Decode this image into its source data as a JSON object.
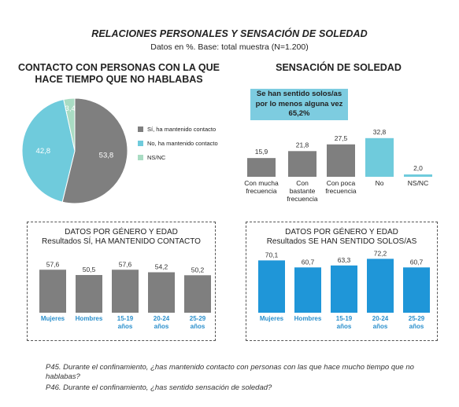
{
  "header": {
    "title": "RELACIONES PERSONALES Y SENSACIÓN DE SOLEDAD",
    "subtitle": "Datos en %. Base: total muestra (N=1.200)"
  },
  "contact": {
    "heading": "CONTACTO CON PERSONAS CON LA QUE HACE TIEMPO QUE NO HABLABAS"
  },
  "loneliness": {
    "heading": "SENSACIÓN DE SOLEDAD",
    "callout": "Se han sentido solos/as por lo menos alguna vez 65,2%"
  },
  "box_left": {
    "line1": "DATOS POR GÉNERO Y EDAD",
    "line2": "Resultados SÍ, HA MANTENIDO CONTACTO"
  },
  "box_right": {
    "line1": "DATOS POR GÉNERO Y EDAD",
    "line2": "Resultados SE HAN SENTIDO SOLOS/AS"
  },
  "footnotes": {
    "p45": "P45. Durante el confinamiento, ¿has mantenido contacto con personas con las que hace mucho tiempo que no hablabas?",
    "p46": "P46. Durante el confinamiento, ¿has sentido sensación de soledad?"
  },
  "colors": {
    "gray": "#7f7f7f",
    "light_blue": "#6fcbdc",
    "light_green": "#a9dcc3",
    "blue": "#1f96d8",
    "label_blue": "#2a8fcc"
  },
  "chart_data": [
    {
      "type": "pie",
      "labels": [
        "Sí, ha mantenido contacto",
        "No, ha mantenido contacto",
        "NS/NC"
      ],
      "values": [
        53.8,
        42.8,
        3.4
      ],
      "value_labels": [
        "53,8",
        "42,8",
        "3,4"
      ],
      "colors": [
        "#7f7f7f",
        "#6fcbdc",
        "#a9dcc3"
      ],
      "legend": "right"
    },
    {
      "type": "bar",
      "categories": [
        "Con mucha frecuencia",
        "Con bastante frecuencia",
        "Con poca frecuencia",
        "No",
        "NS/NC"
      ],
      "values": [
        15.9,
        21.8,
        27.5,
        32.8,
        2.0
      ],
      "value_labels": [
        "15,9",
        "21,8",
        "27,5",
        "32,8",
        "2,0"
      ],
      "colors": [
        "#7f7f7f",
        "#7f7f7f",
        "#7f7f7f",
        "#6fcbdc",
        "#6fcbdc"
      ]
    },
    {
      "type": "bar",
      "categories": [
        "Mujeres",
        "Hombres",
        "15-19 años",
        "20-24 años",
        "25-29 años"
      ],
      "values": [
        57.6,
        50.5,
        57.6,
        54.2,
        50.2
      ],
      "value_labels": [
        "57,6",
        "50,5",
        "57,6",
        "54,2",
        "50,2"
      ],
      "bar_color": "#7f7f7f"
    },
    {
      "type": "bar",
      "categories": [
        "Mujeres",
        "Hombres",
        "15-19 años",
        "20-24 años",
        "25-29 años"
      ],
      "values": [
        70.1,
        60.7,
        63.3,
        72.2,
        60.7
      ],
      "value_labels": [
        "70,1",
        "60,7",
        "63,3",
        "72,2",
        "60,7"
      ],
      "bar_color": "#1f96d8"
    }
  ]
}
